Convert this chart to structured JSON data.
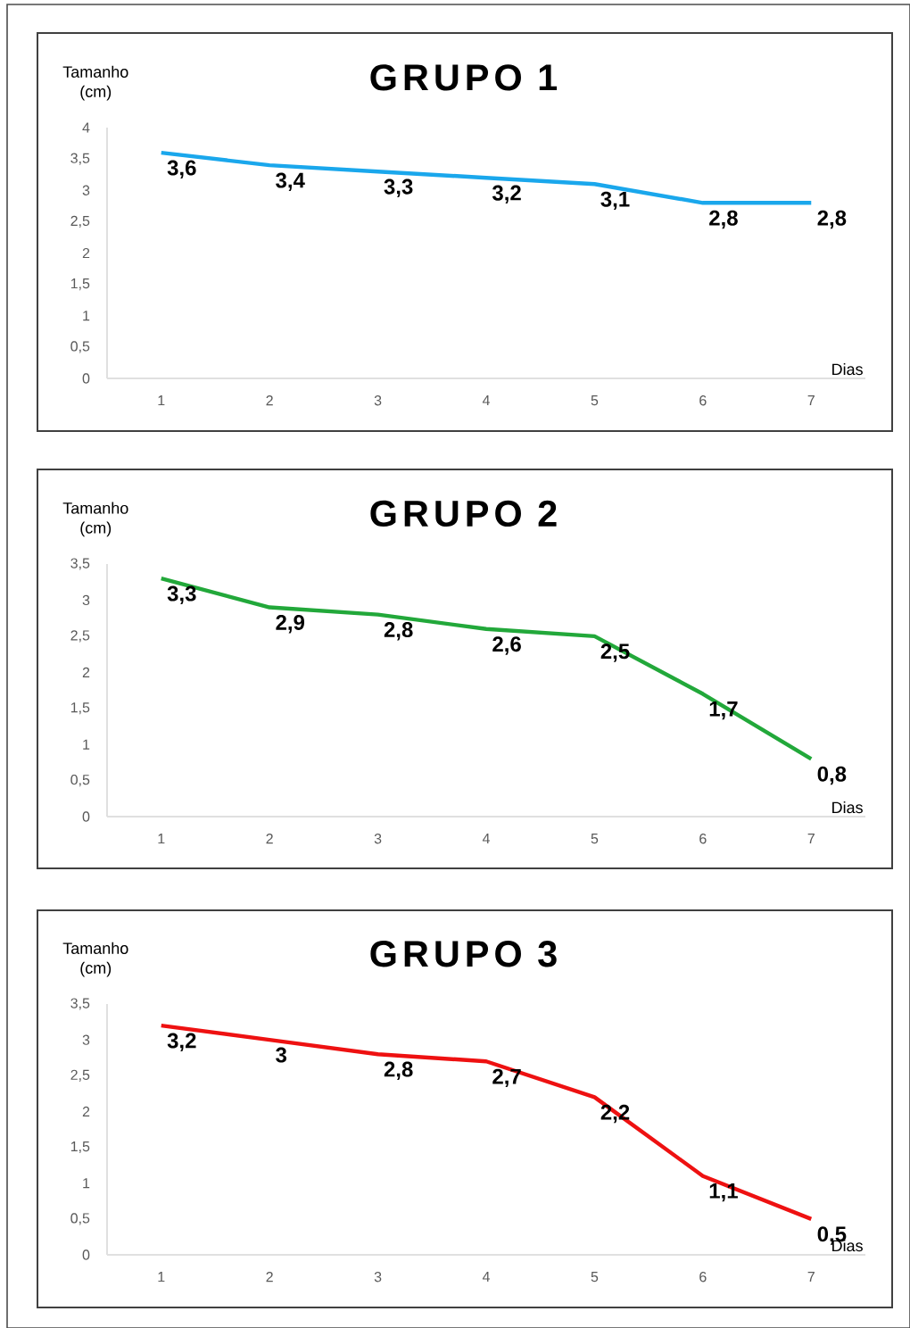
{
  "chart_data": [
    {
      "type": "line",
      "title": "GRUPO 1",
      "xlabel": "Dias",
      "ylabel": "Tamanho (cm)",
      "categories": [
        "1",
        "2",
        "3",
        "4",
        "5",
        "6",
        "7"
      ],
      "series": [
        {
          "color": "#1aa7ec",
          "values": [
            3.6,
            3.4,
            3.3,
            3.2,
            3.1,
            2.8,
            2.8
          ],
          "value_labels": [
            "3,6",
            "3,4",
            "3,3",
            "3,2",
            "3,1",
            "2,8",
            "2,8"
          ]
        }
      ],
      "ylim": [
        0,
        4
      ],
      "yticks": [
        0,
        {
          "value": 0.5,
          "label": "0,5"
        },
        1,
        {
          "value": 1.5,
          "label": "1,5"
        },
        2,
        {
          "value": 2.5,
          "label": "2,5"
        },
        3,
        {
          "value": 3.5,
          "label": "3,5"
        },
        4
      ],
      "marker": "none",
      "line_style": "solid"
    },
    {
      "type": "line",
      "title": "GRUPO 2",
      "xlabel": "Dias",
      "ylabel": "Tamanho (cm)",
      "categories": [
        "1",
        "2",
        "3",
        "4",
        "5",
        "6",
        "7"
      ],
      "series": [
        {
          "color": "#22a83a",
          "values": [
            3.3,
            2.9,
            2.8,
            2.6,
            2.5,
            1.7,
            0.8
          ],
          "value_labels": [
            "3,3",
            "2,9",
            "2,8",
            "2,6",
            "2,5",
            "1,7",
            "0,8"
          ]
        }
      ],
      "ylim": [
        0,
        3.5
      ],
      "yticks": [
        0,
        {
          "value": 0.5,
          "label": "0,5"
        },
        1,
        {
          "value": 1.5,
          "label": "1,5"
        },
        2,
        {
          "value": 2.5,
          "label": "2,5"
        },
        3,
        {
          "value": 3.5,
          "label": "3,5"
        }
      ],
      "marker": "none",
      "line_style": "solid"
    },
    {
      "type": "line",
      "title": "GRUPO 3",
      "xlabel": "Dias",
      "ylabel": "Tamanho (cm)",
      "categories": [
        "1",
        "2",
        "3",
        "4",
        "5",
        "6",
        "7"
      ],
      "series": [
        {
          "color": "#ee1111",
          "values": [
            3.2,
            3,
            2.8,
            2.7,
            2.2,
            1.1,
            0.5
          ],
          "value_labels": [
            "3,2",
            "3",
            "2,8",
            "2,7",
            "2,2",
            "1,1",
            "0,5"
          ]
        }
      ],
      "ylim": [
        0,
        3.5
      ],
      "yticks": [
        0,
        {
          "value": 0.5,
          "label": "0,5"
        },
        1,
        {
          "value": 1.5,
          "label": "1,5"
        },
        2,
        {
          "value": 2.5,
          "label": "2,5"
        },
        3,
        {
          "value": 3.5,
          "label": "3,5"
        }
      ],
      "marker": "none",
      "line_style": "solid"
    }
  ]
}
